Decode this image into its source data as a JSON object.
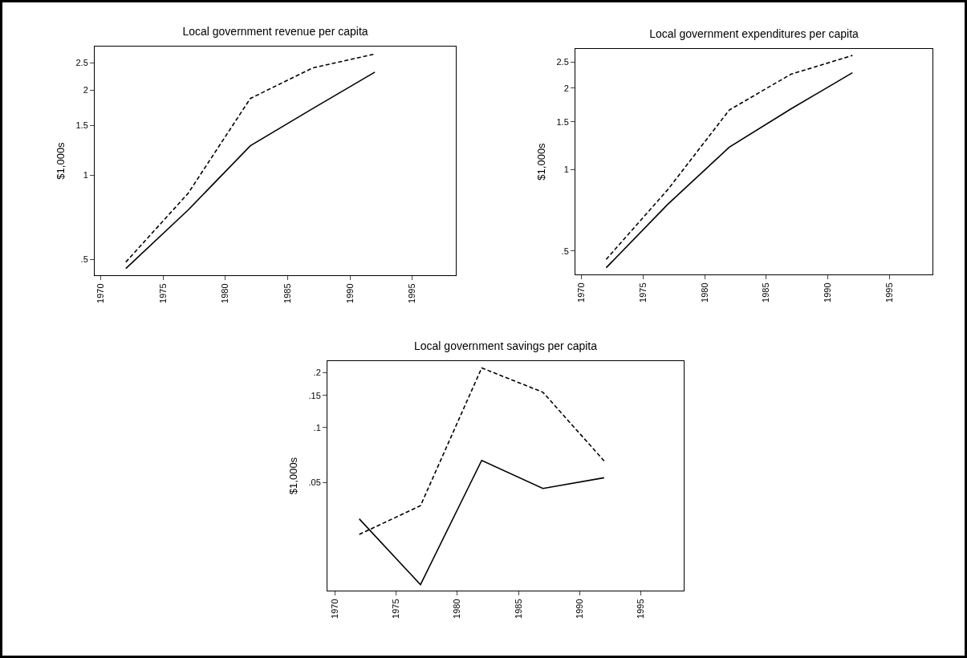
{
  "chart_data": [
    {
      "type": "line",
      "title": "Local government revenue per capita",
      "ylabel": "$1,000s",
      "x": [
        1972,
        1977,
        1982,
        1987,
        1992
      ],
      "log": true,
      "grid": false,
      "marker": "none",
      "xlim": [
        1969.5,
        1998.5
      ],
      "xticks": [
        1970,
        1975,
        1980,
        1985,
        1990,
        1995
      ],
      "ylim": [
        0.44,
        2.86
      ],
      "yticks": [
        {
          "value": 0.5,
          "label": ".5"
        },
        1,
        1.5,
        2,
        2.5
      ],
      "series": [
        {
          "color": "#000000",
          "line_style": "solid",
          "values": [
            0.465,
            0.75,
            1.27,
            1.72,
            2.32
          ]
        },
        {
          "color": "#000000",
          "line_style": "dashed",
          "values": [
            0.49,
            0.86,
            1.87,
            2.4,
            2.69
          ]
        }
      ]
    },
    {
      "type": "line",
      "title": "Local government expenditures per capita",
      "ylabel": "$1,000s",
      "x": [
        1972,
        1977,
        1982,
        1987,
        1992
      ],
      "log": true,
      "grid": false,
      "marker": "none",
      "xlim": [
        1969.5,
        1998.5
      ],
      "xticks": [
        1970,
        1975,
        1980,
        1985,
        1990,
        1995
      ],
      "ylim": [
        0.41,
        2.79
      ],
      "yticks": [
        {
          "value": 0.5,
          "label": ".5"
        },
        1,
        1.5,
        2,
        2.5
      ],
      "series": [
        {
          "color": "#000000",
          "line_style": "solid",
          "values": [
            0.434,
            0.744,
            1.21,
            1.675,
            2.28
          ]
        },
        {
          "color": "#000000",
          "line_style": "dashed",
          "values": [
            0.466,
            0.843,
            1.66,
            2.25,
            2.64
          ]
        }
      ]
    },
    {
      "type": "line",
      "title": "Local government savings per capita",
      "ylabel": "$1,000s",
      "x": [
        1972,
        1977,
        1982,
        1987,
        1992
      ],
      "log": true,
      "grid": false,
      "marker": "none",
      "xlim": [
        1969.4,
        1998.5
      ],
      "xticks": [
        1970,
        1975,
        1980,
        1985,
        1990,
        1995
      ],
      "ylim": [
        0.0128,
        0.231
      ],
      "yticks": [
        {
          "value": 0.05,
          "label": ".05"
        },
        {
          "value": 0.1,
          "label": ".1"
        },
        {
          "value": 0.15,
          "label": ".15"
        },
        {
          "value": 0.2,
          "label": ".2"
        }
      ],
      "series": [
        {
          "color": "#000000",
          "line_style": "solid",
          "values": [
            0.0316,
            0.0138,
            0.0661,
            0.0464,
            0.0531
          ]
        },
        {
          "color": "#000000",
          "line_style": "dashed",
          "values": [
            0.026,
            0.0373,
            0.212,
            0.156,
            0.0656
          ]
        }
      ]
    }
  ]
}
